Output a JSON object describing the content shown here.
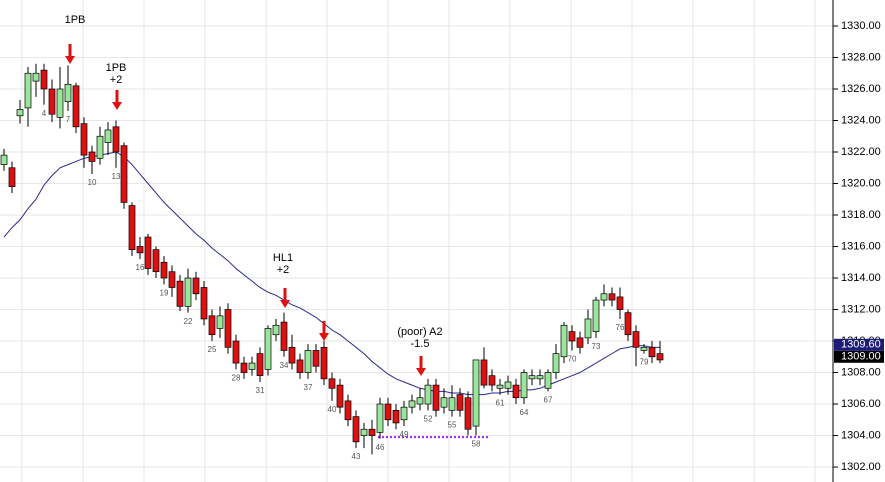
{
  "chart_data": {
    "type": "candlestick",
    "categories": [
      null,
      null,
      null,
      null,
      null,
      "4",
      null,
      null,
      "7",
      null,
      null,
      "10",
      null,
      null,
      "13",
      null,
      null,
      "16",
      null,
      null,
      "19",
      null,
      null,
      "22",
      null,
      null,
      "25",
      null,
      null,
      "28",
      null,
      null,
      "31",
      null,
      null,
      "34",
      null,
      null,
      "37",
      null,
      null,
      "40",
      null,
      null,
      "43",
      null,
      null,
      "46",
      null,
      null,
      "49",
      null,
      null,
      "52",
      null,
      null,
      "55",
      null,
      null,
      "58",
      null,
      null,
      "61",
      null,
      null,
      "64",
      null,
      null,
      "67",
      null,
      null,
      "70",
      null,
      null,
      "73",
      null,
      null,
      "76",
      null,
      null,
      "79",
      null,
      null
    ],
    "open": [
      1321.2,
      1321.0,
      1324.3,
      1324.8,
      1326.5,
      1327.2,
      1326.0,
      1324.2,
      1325.2,
      1326.2,
      1323.8,
      1322.0,
      1321.6,
      1322.6,
      1323.6,
      1322.4,
      1318.6,
      1316.0,
      1316.6,
      1315.8,
      1315.0,
      1314.4,
      1313.8,
      1312.2,
      1314.0,
      1313.4,
      1311.6,
      1310.8,
      1312.0,
      1310.0,
      1308.6,
      1308.2,
      1309.2,
      1308.2,
      1310.4,
      1311.2,
      1309.6,
      1308.8,
      1308.0,
      1309.4,
      1309.6,
      1307.6,
      1307.2,
      1306.2,
      1305.2,
      1304.0,
      1304.4,
      1304.2,
      1306.0,
      1305.6,
      1305.0,
      1305.8,
      1306.0,
      1306.0,
      1307.2,
      1305.8,
      1305.6,
      1306.6,
      1306.4,
      1304.6,
      1308.8,
      1307.8,
      1307.0,
      1307.0,
      1307.2,
      1306.4,
      1307.6,
      1307.6,
      1307.0,
      1308.0,
      1309.0,
      1310.6,
      1310.2,
      1310.2,
      1310.6,
      1312.6,
      1313.0,
      1312.8,
      1311.8,
      1310.6,
      1309.4,
      1309.6,
      1309.2
    ],
    "high": [
      1322.2,
      1321.4,
      1325.3,
      1327.4,
      1327.6,
      1327.6,
      1326.6,
      1327.4,
      1327.5,
      1326.4,
      1324.2,
      1322.4,
      1323.6,
      1323.9,
      1324.0,
      1322.6,
      1318.8,
      1316.6,
      1316.8,
      1316.0,
      1315.4,
      1314.8,
      1314.2,
      1314.6,
      1314.4,
      1313.8,
      1312.0,
      1312.2,
      1312.4,
      1310.4,
      1309.0,
      1309.0,
      1309.6,
      1311.0,
      1311.4,
      1311.8,
      1310.4,
      1309.2,
      1309.8,
      1309.8,
      1310.0,
      1308.0,
      1307.6,
      1306.6,
      1305.6,
      1304.8,
      1305.0,
      1306.4,
      1306.4,
      1306.0,
      1306.2,
      1306.6,
      1307.0,
      1307.6,
      1307.6,
      1307.0,
      1307.2,
      1307.0,
      1306.8,
      1308.8,
      1309.6,
      1308.2,
      1307.6,
      1307.8,
      1307.6,
      1308.2,
      1308.2,
      1308.2,
      1308.2,
      1309.8,
      1311.2,
      1311.0,
      1310.6,
      1312.0,
      1312.8,
      1313.6,
      1313.4,
      1313.4,
      1312.0,
      1311.0,
      1309.8,
      1310.0,
      1310.0
    ],
    "low": [
      1320.8,
      1319.4,
      1323.8,
      1323.6,
      1325.5,
      1325.0,
      1323.9,
      1323.5,
      1324.6,
      1323.2,
      1321.0,
      1320.6,
      1321.2,
      1321.8,
      1321.0,
      1318.4,
      1315.4,
      1315.2,
      1314.2,
      1314.0,
      1313.6,
      1312.8,
      1311.9,
      1311.8,
      1312.6,
      1311.0,
      1310.0,
      1310.2,
      1309.2,
      1308.2,
      1307.6,
      1307.8,
      1307.4,
      1307.8,
      1310.0,
      1309.0,
      1308.2,
      1307.6,
      1307.6,
      1308.0,
      1307.2,
      1306.2,
      1305.4,
      1304.6,
      1303.2,
      1303.2,
      1302.8,
      1303.8,
      1304.6,
      1304.4,
      1304.6,
      1305.4,
      1305.6,
      1305.6,
      1305.2,
      1305.4,
      1305.2,
      1305.2,
      1304.0,
      1304.0,
      1307.0,
      1306.8,
      1306.6,
      1306.6,
      1306.0,
      1306.0,
      1307.2,
      1307.2,
      1306.8,
      1307.6,
      1308.6,
      1309.4,
      1309.2,
      1309.8,
      1310.2,
      1312.2,
      1312.2,
      1311.4,
      1310.0,
      1308.4,
      1309.2,
      1308.6,
      1308.6
    ],
    "close": [
      1321.8,
      1319.8,
      1324.7,
      1327.0,
      1327.0,
      1326.0,
      1324.4,
      1326.0,
      1326.3,
      1323.6,
      1321.8,
      1321.4,
      1323.0,
      1323.4,
      1322.0,
      1318.8,
      1315.8,
      1315.6,
      1314.6,
      1314.4,
      1314.0,
      1313.4,
      1312.2,
      1314.0,
      1313.0,
      1311.4,
      1310.4,
      1311.6,
      1309.6,
      1308.6,
      1308.0,
      1308.6,
      1307.8,
      1310.8,
      1311.0,
      1309.4,
      1308.6,
      1308.0,
      1309.4,
      1308.4,
      1307.6,
      1307.0,
      1305.8,
      1305.0,
      1303.6,
      1304.4,
      1304.0,
      1306.0,
      1305.0,
      1304.8,
      1305.8,
      1306.2,
      1306.4,
      1307.2,
      1305.6,
      1306.4,
      1306.4,
      1305.6,
      1304.4,
      1308.8,
      1307.2,
      1307.2,
      1307.2,
      1307.4,
      1306.4,
      1308.0,
      1307.8,
      1307.8,
      1308.0,
      1309.2,
      1311.0,
      1310.0,
      1309.6,
      1311.4,
      1312.6,
      1313.0,
      1312.6,
      1312.0,
      1310.4,
      1309.6,
      1309.6,
      1309.0,
      1308.8
    ],
    "up_color": "#9be59b",
    "down_color": "#dd1111",
    "moving_average": {
      "color": "#2a2a90",
      "values": [
        1316.6,
        1317.2,
        1317.7,
        1318.4,
        1319.0,
        1319.9,
        1320.5,
        1321.0,
        1321.2,
        1321.4,
        1321.6,
        1321.7,
        1321.8,
        1321.9,
        1322.0,
        1321.7,
        1321.2,
        1320.6,
        1320.0,
        1319.4,
        1318.8,
        1318.3,
        1317.8,
        1317.3,
        1316.8,
        1316.4,
        1315.9,
        1315.5,
        1315.1,
        1314.6,
        1314.2,
        1313.8,
        1313.4,
        1313.1,
        1312.9,
        1312.6,
        1312.3,
        1312.1,
        1311.8,
        1311.5,
        1311.1,
        1310.7,
        1310.4,
        1310.0,
        1309.6,
        1309.2,
        1308.7,
        1308.3,
        1307.9,
        1307.6,
        1307.4,
        1307.2,
        1307.0,
        1306.9,
        1306.8,
        1306.8,
        1306.7,
        1306.7,
        1306.6,
        1306.6,
        1306.6,
        1306.7,
        1306.7,
        1306.8,
        1306.8,
        1306.9,
        1306.9,
        1307.0,
        1307.2,
        1307.4,
        1307.6,
        1307.8,
        1308.0,
        1308.3,
        1308.6,
        1308.9,
        1309.2,
        1309.5,
        1309.6,
        1309.7,
        1309.7,
        1309.6,
        1309.6
      ]
    },
    "level_lines": [
      {
        "value": 1303.9,
        "color": "#a020f0"
      }
    ],
    "annotations": [
      {
        "lines": [
          "1PB"
        ]
      },
      {
        "lines": [
          "1PB",
          "+2"
        ]
      },
      {
        "lines": [
          "HL1",
          "+2"
        ]
      },
      {
        "lines": [
          "(poor) A2",
          "-1.5"
        ]
      }
    ],
    "arrow_color": "#dd1111",
    "price_labels": [
      {
        "value": 1309.6,
        "label": "1309.60",
        "color": "#1c1c78"
      },
      {
        "value": 1309.0,
        "label": "1309.00",
        "color": "#000000"
      }
    ],
    "ylim": [
      1301.05,
      1331.65
    ],
    "yticks": [
      {
        "value": 1302,
        "label": "1302.00"
      },
      {
        "value": 1304,
        "label": "1304.00"
      },
      {
        "value": 1306,
        "label": "1306.00"
      },
      {
        "value": 1308,
        "label": "1308.00"
      },
      {
        "value": 1310,
        "label": "1310.00"
      },
      {
        "value": 1312,
        "label": "1312.00"
      },
      {
        "value": 1314,
        "label": "1314.00"
      },
      {
        "value": 1316,
        "label": "1316.00"
      },
      {
        "value": 1318,
        "label": "1318.00"
      },
      {
        "value": 1320,
        "label": "1320.00"
      },
      {
        "value": 1322,
        "label": "1322.00"
      },
      {
        "value": 1324,
        "label": "1324.00"
      },
      {
        "value": 1326,
        "label": "1326.00"
      },
      {
        "value": 1328,
        "label": "1328.00"
      },
      {
        "value": 1330,
        "label": "1330.00"
      }
    ],
    "grid": true
  }
}
